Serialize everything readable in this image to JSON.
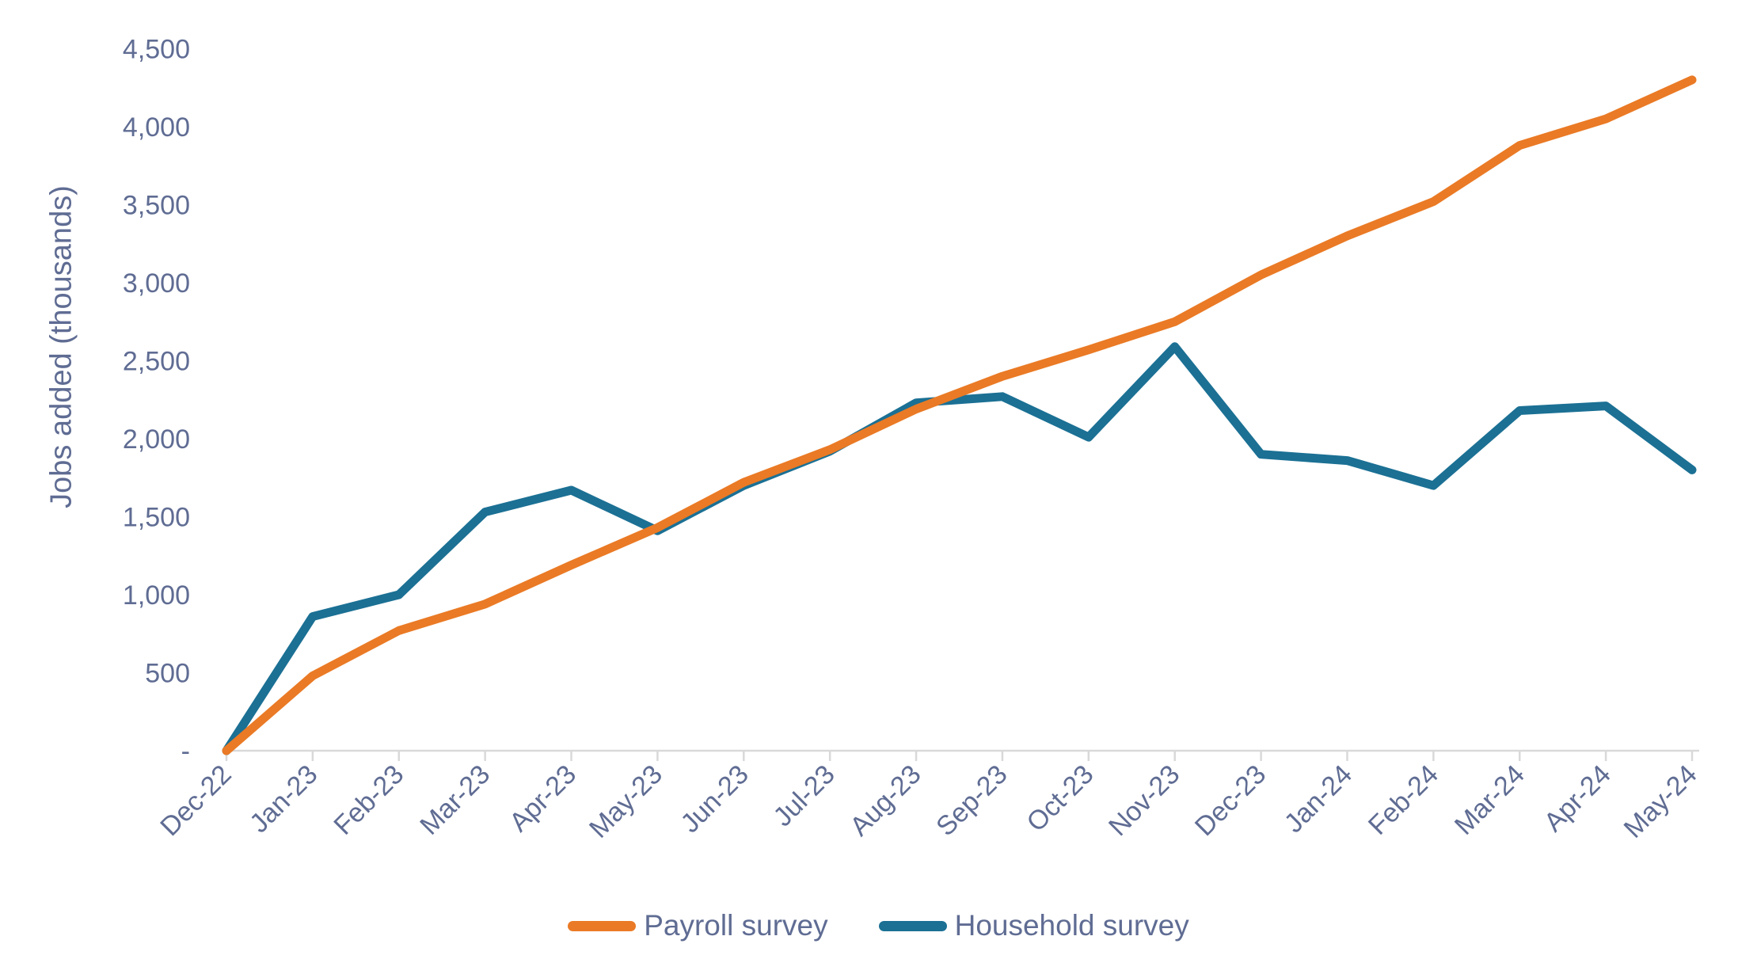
{
  "chart_data": {
    "type": "line",
    "title": "",
    "xlabel": "",
    "ylabel": "Jobs added (thousands)",
    "ylim": [
      0,
      4500
    ],
    "grid": "off",
    "legend_position": "bottom",
    "y_tick_values": [
      0,
      500,
      1000,
      1500,
      2000,
      2500,
      3000,
      3500,
      4000,
      4500
    ],
    "y_tick_labels": [
      "-",
      "500",
      "1,000",
      "1,500",
      "2,000",
      "2,500",
      "3,000",
      "3,500",
      "4,000",
      "4,500"
    ],
    "categories": [
      "Dec-22",
      "Jan-23",
      "Feb-23",
      "Mar-23",
      "Apr-23",
      "May-23",
      "Jun-23",
      "Jul-23",
      "Aug-23",
      "Sep-23",
      "Oct-23",
      "Nov-23",
      "Dec-23",
      "Jan-24",
      "Feb-24",
      "Mar-24",
      "Apr-24",
      "May-24"
    ],
    "series": [
      {
        "name": "Payroll survey",
        "color": "#EA7A25",
        "values": [
          0,
          480,
          770,
          940,
          1190,
          1430,
          1720,
          1930,
          2190,
          2400,
          2570,
          2750,
          3050,
          3300,
          3520,
          3880,
          4050,
          4300
        ]
      },
      {
        "name": "Household survey",
        "color": "#1B7094",
        "values": [
          0,
          860,
          1000,
          1530,
          1670,
          1410,
          1700,
          1920,
          2230,
          2270,
          2010,
          2590,
          1900,
          1860,
          1700,
          2180,
          2210,
          1800
        ]
      }
    ]
  },
  "colors": {
    "text": "#5F6C93",
    "axis_line": "#D9D9D9",
    "background": "#FFFFFF"
  }
}
